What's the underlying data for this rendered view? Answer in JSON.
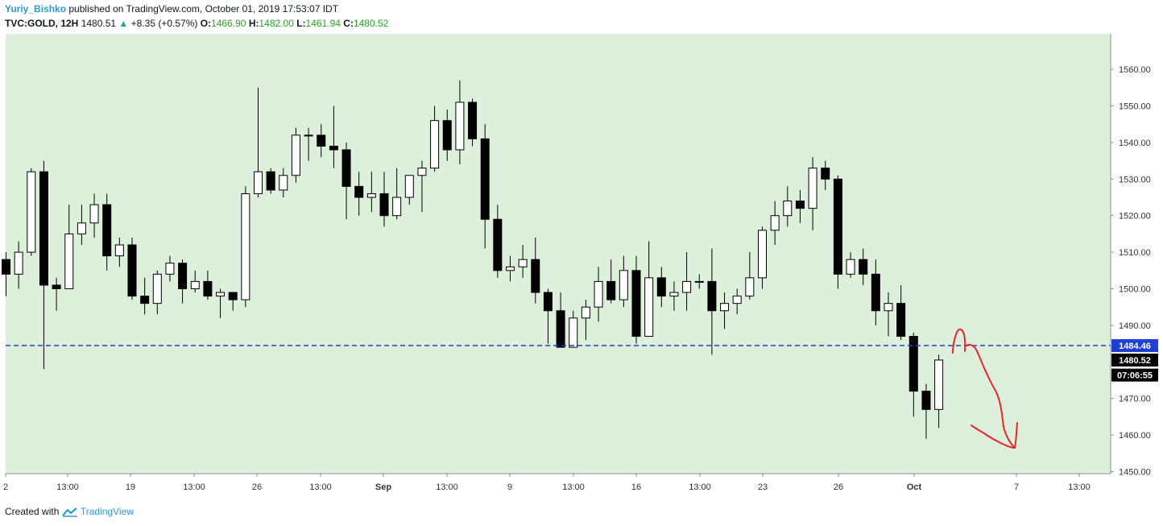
{
  "header": {
    "user": "Yuriy_Bishko",
    "published_text": "published on TradingView.com, October 01, 2019 17:53:07 IDT",
    "symbol": "TVC:GOLD, 12H",
    "last": "1480.51",
    "change_arrow": "▲",
    "change": "+8.35 (+0.57%)",
    "o_label": "O:",
    "o_value": "1466.90",
    "h_label": "H:",
    "h_value": "1482.00",
    "l_label": "L:",
    "l_value": "1461.94",
    "c_label": "C:",
    "c_value": "1480.52"
  },
  "footer": {
    "created_with": "Created with",
    "brand": "TradingView",
    "logo_icon": "tradingview-logo-icon"
  },
  "colors": {
    "background": "#ddf0dc",
    "bull": "#ffffff",
    "bear": "#000000",
    "hline": "#1e3fd6",
    "drawing": "#e8262b",
    "price_tag": "#1e3fd6"
  },
  "chart_data": {
    "type": "candlestick",
    "timeframe": "12H",
    "ylim": [
      1448,
      1565
    ],
    "y_ticks": [
      "1560.00",
      "1550.00",
      "1540.00",
      "1530.00",
      "1520.00",
      "1510.00",
      "1500.00",
      "1490.00",
      "1480.00",
      "1470.00",
      "1460.00",
      "1450.00"
    ],
    "x_ticks": [
      "2",
      "13:00",
      "19",
      "13:00",
      "26",
      "13:00",
      "Sep",
      "13:00",
      "9",
      "13:00",
      "16",
      "13:00",
      "23",
      "26",
      "Oct",
      "7",
      "13:00"
    ],
    "candles": [
      [
        1508,
        1504,
        1510,
        1498
      ],
      [
        1504,
        1510,
        1513,
        1500
      ],
      [
        1510,
        1532,
        1533,
        1509
      ],
      [
        1532,
        1501,
        1535,
        1478
      ],
      [
        1501,
        1500,
        1503,
        1494
      ],
      [
        1500,
        1515,
        1523,
        1500
      ],
      [
        1515,
        1518,
        1523,
        1512
      ],
      [
        1518,
        1523,
        1526,
        1514
      ],
      [
        1523,
        1509,
        1526,
        1505
      ],
      [
        1509,
        1512,
        1514,
        1506
      ],
      [
        1512,
        1498,
        1514,
        1497
      ],
      [
        1498,
        1496,
        1503,
        1493
      ],
      [
        1496,
        1504,
        1505,
        1493
      ],
      [
        1504,
        1507,
        1509,
        1502
      ],
      [
        1507,
        1500,
        1508,
        1496
      ],
      [
        1500,
        1502,
        1505,
        1499
      ],
      [
        1502,
        1498,
        1505,
        1497
      ],
      [
        1498,
        1499,
        1500,
        1492
      ],
      [
        1499,
        1497,
        1499,
        1494
      ],
      [
        1497,
        1526,
        1528,
        1495
      ],
      [
        1526,
        1532,
        1555,
        1525
      ],
      [
        1532,
        1527,
        1533,
        1526
      ],
      [
        1527,
        1531,
        1533,
        1525
      ],
      [
        1531,
        1542,
        1544,
        1529
      ],
      [
        1542,
        1542,
        1544,
        1535
      ],
      [
        1542,
        1539,
        1545,
        1536
      ],
      [
        1539,
        1538,
        1550,
        1533
      ],
      [
        1538,
        1528,
        1540,
        1519
      ],
      [
        1528,
        1525,
        1532,
        1520
      ],
      [
        1525,
        1526,
        1532,
        1521
      ],
      [
        1526,
        1520,
        1532,
        1517
      ],
      [
        1520,
        1525,
        1533,
        1519
      ],
      [
        1525,
        1531,
        1531,
        1523
      ],
      [
        1531,
        1533,
        1535,
        1521
      ],
      [
        1533,
        1546,
        1550,
        1532
      ],
      [
        1546,
        1538,
        1549,
        1535
      ],
      [
        1538,
        1551,
        1557,
        1534
      ],
      [
        1551,
        1541,
        1552,
        1539
      ],
      [
        1541,
        1519,
        1545,
        1511
      ],
      [
        1519,
        1505,
        1523,
        1503
      ],
      [
        1505,
        1506,
        1509,
        1502
      ],
      [
        1506,
        1508,
        1512,
        1503
      ],
      [
        1508,
        1499,
        1514,
        1496
      ],
      [
        1499,
        1494,
        1500,
        1485
      ],
      [
        1494,
        1484,
        1499,
        1484
      ],
      [
        1484,
        1492,
        1494,
        1485
      ],
      [
        1492,
        1495,
        1497,
        1486
      ],
      [
        1495,
        1502,
        1506,
        1491
      ],
      [
        1502,
        1497,
        1508,
        1496
      ],
      [
        1497,
        1505,
        1509,
        1495
      ],
      [
        1505,
        1487,
        1509,
        1485
      ],
      [
        1487,
        1503,
        1513,
        1487
      ],
      [
        1503,
        1498,
        1506,
        1495
      ],
      [
        1498,
        1499,
        1502,
        1494
      ],
      [
        1499,
        1502,
        1510,
        1494
      ],
      [
        1502,
        1502,
        1504,
        1500
      ],
      [
        1502,
        1494,
        1511,
        1482
      ],
      [
        1494,
        1496,
        1499,
        1489
      ],
      [
        1496,
        1498,
        1500,
        1493
      ],
      [
        1498,
        1503,
        1510,
        1497
      ],
      [
        1503,
        1516,
        1517,
        1500
      ],
      [
        1516,
        1520,
        1524,
        1512
      ],
      [
        1520,
        1524,
        1528,
        1517
      ],
      [
        1524,
        1522,
        1527,
        1518
      ],
      [
        1522,
        1533,
        1536,
        1516
      ],
      [
        1533,
        1530,
        1535,
        1527
      ],
      [
        1530,
        1504,
        1531,
        1500
      ],
      [
        1504,
        1508,
        1510,
        1503
      ],
      [
        1508,
        1504,
        1511,
        1501
      ],
      [
        1504,
        1494,
        1508,
        1490
      ],
      [
        1494,
        1496,
        1499,
        1487
      ],
      [
        1496,
        1487,
        1501,
        1486
      ],
      [
        1487,
        1472,
        1488,
        1465
      ],
      [
        1472,
        1467,
        1474,
        1459
      ],
      [
        1467,
        1480.52,
        1482,
        1461.94
      ]
    ],
    "horizontal_line": 1484.46,
    "price_labels": [
      {
        "text": "1484.46",
        "value": 1484.46,
        "style": "blue"
      },
      {
        "text": "1480.52",
        "value": 1480.52,
        "style": "dark"
      },
      {
        "text": "07:06:55",
        "value": 1476.4,
        "style": "dark"
      }
    ]
  }
}
